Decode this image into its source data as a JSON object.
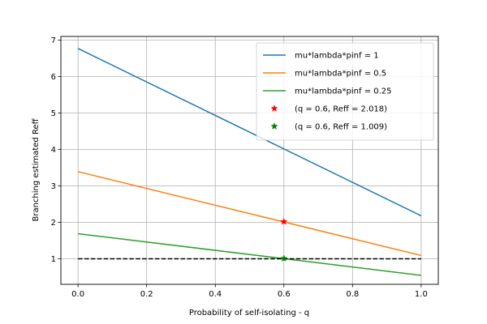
{
  "chart_data": {
    "type": "line",
    "title": "",
    "xlabel": "Probability of self-isolating - q",
    "ylabel": "Branching estimated Reff",
    "xlim": [
      -0.05,
      1.05
    ],
    "ylim": [
      0.3,
      7.1
    ],
    "xticks": [
      0.0,
      0.2,
      0.4,
      0.6,
      0.8,
      1.0
    ],
    "xtick_labels": [
      "0.0",
      "0.2",
      "0.4",
      "0.6",
      "0.8",
      "1.0"
    ],
    "yticks": [
      1,
      2,
      3,
      4,
      5,
      6,
      7
    ],
    "ytick_labels": [
      "1",
      "2",
      "3",
      "4",
      "5",
      "6",
      "7"
    ],
    "grid": true,
    "legend_position": "top-right",
    "series": [
      {
        "name": "mu*lambda*pinf = 1",
        "kind": "line",
        "color": "#1f77b4",
        "x": [
          0.0,
          1.0
        ],
        "y": [
          6.77,
          2.18
        ]
      },
      {
        "name": "mu*lambda*pinf = 0.5",
        "kind": "line",
        "color": "#ff7f0e",
        "x": [
          0.0,
          1.0
        ],
        "y": [
          3.39,
          1.09
        ]
      },
      {
        "name": "mu*lambda*pinf = 0.25",
        "kind": "line",
        "color": "#2ca02c",
        "x": [
          0.0,
          1.0
        ],
        "y": [
          1.69,
          0.545
        ]
      },
      {
        "name": "(q = 0.6, Reff = 2.018)",
        "kind": "marker",
        "color": "#ff0000",
        "x": [
          0.6
        ],
        "y": [
          2.018
        ]
      },
      {
        "name": "(q = 0.6, Reff = 1.009)",
        "kind": "marker",
        "color": "#008000",
        "x": [
          0.6
        ],
        "y": [
          1.009
        ]
      }
    ],
    "reference_line": {
      "style": "dashed",
      "color": "#000000",
      "x": [
        0.0,
        1.0
      ],
      "y": [
        1.0,
        1.0
      ]
    }
  }
}
